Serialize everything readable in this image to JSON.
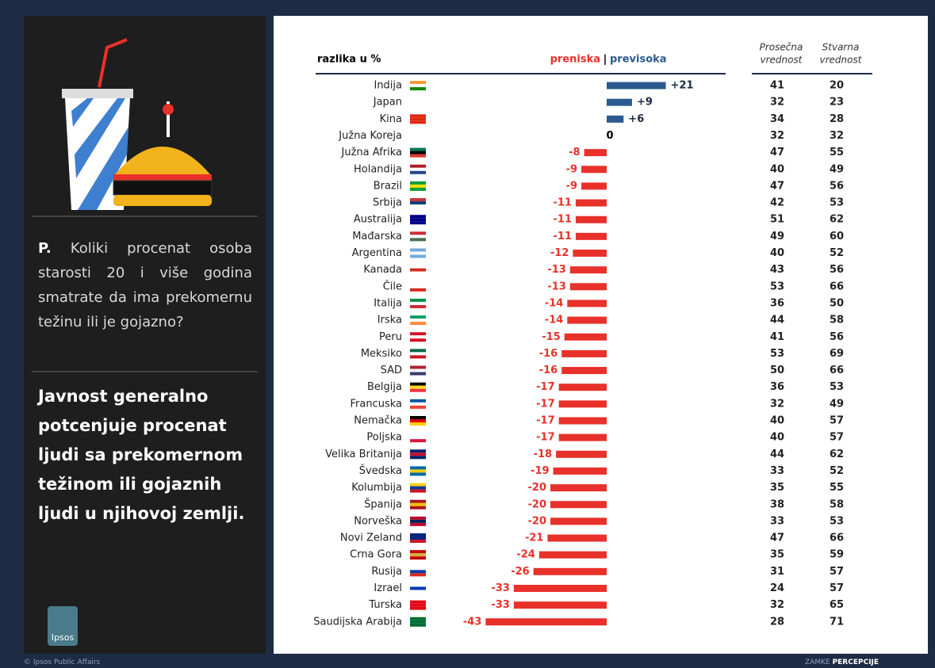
{
  "question_label": "P.",
  "question": "Koliki procenat osoba starosti 20 i više godina smatrate da ima prekomernu težinu ili je gojazno?",
  "headline": "Javnost generalno potcenjuje procenat ljudi sa prekomernom težinom ili gojaznih ljudi u njihovoj zemlji.",
  "logo": "Ipsos",
  "footer_left": "© Ipsos Public Affairs",
  "footer_right_prefix": "ZAMKE",
  "footer_right": "PERCEPCIJE",
  "chart_data": {
    "type": "bar",
    "orientation": "horizontal",
    "x_label": "razlika u %",
    "legend": [
      {
        "name": "preniska",
        "color": "#e8312a"
      },
      {
        "name": "previsoka",
        "color": "#2b5b8e"
      }
    ],
    "legend_separator": "|",
    "categories": [
      "Indija",
      "Japan",
      "Kina",
      "Južna Koreja",
      "Južna Afrika",
      "Holandija",
      "Brazil",
      "Srbija",
      "Australija",
      "Mađarska",
      "Argentina",
      "Kanada",
      "Čile",
      "Italija",
      "Irska",
      "Peru",
      "Meksiko",
      "SAD",
      "Belgija",
      "Francuska",
      "Nemačka",
      "Poljska",
      "Velika Britanija",
      "Švedska",
      "Kolumbija",
      "Španija",
      "Norveška",
      "Novi Zeland",
      "Crna Gora",
      "Rusija",
      "Izrael",
      "Turska",
      "Saudijska Arabija"
    ],
    "values": [
      21,
      9,
      6,
      0,
      -8,
      -9,
      -9,
      -11,
      -11,
      -11,
      -12,
      -13,
      -13,
      -14,
      -14,
      -15,
      -16,
      -16,
      -17,
      -17,
      -17,
      -17,
      -18,
      -19,
      -20,
      -20,
      -20,
      -21,
      -24,
      -26,
      -33,
      -33,
      -43
    ],
    "value_labels": [
      "+21",
      "+9",
      "+6",
      "0",
      "-8",
      "-9",
      "-9",
      "-11",
      "-11",
      "-11",
      "-12",
      "-13",
      "-13",
      "-14",
      "-14",
      "-15",
      "-16",
      "-16",
      "-17",
      "-17",
      "-17",
      "-17",
      "-18",
      "-19",
      "-20",
      "-20",
      "-20",
      "-21",
      "-24",
      "-26",
      "-33",
      "-33",
      "-43"
    ],
    "table": [
      {
        "header": [
          "Prosečna",
          "vrednost"
        ],
        "values": [
          41,
          32,
          34,
          32,
          47,
          40,
          47,
          42,
          51,
          49,
          40,
          43,
          53,
          36,
          44,
          41,
          53,
          50,
          36,
          32,
          40,
          40,
          44,
          33,
          35,
          38,
          33,
          47,
          35,
          31,
          24,
          32,
          28
        ]
      },
      {
        "header": [
          "Stvarna",
          "vrednost"
        ],
        "values": [
          20,
          23,
          28,
          32,
          55,
          49,
          56,
          53,
          62,
          60,
          52,
          56,
          66,
          50,
          58,
          56,
          69,
          66,
          53,
          49,
          57,
          57,
          62,
          52,
          55,
          58,
          53,
          66,
          59,
          57,
          57,
          65,
          71
        ]
      }
    ]
  }
}
